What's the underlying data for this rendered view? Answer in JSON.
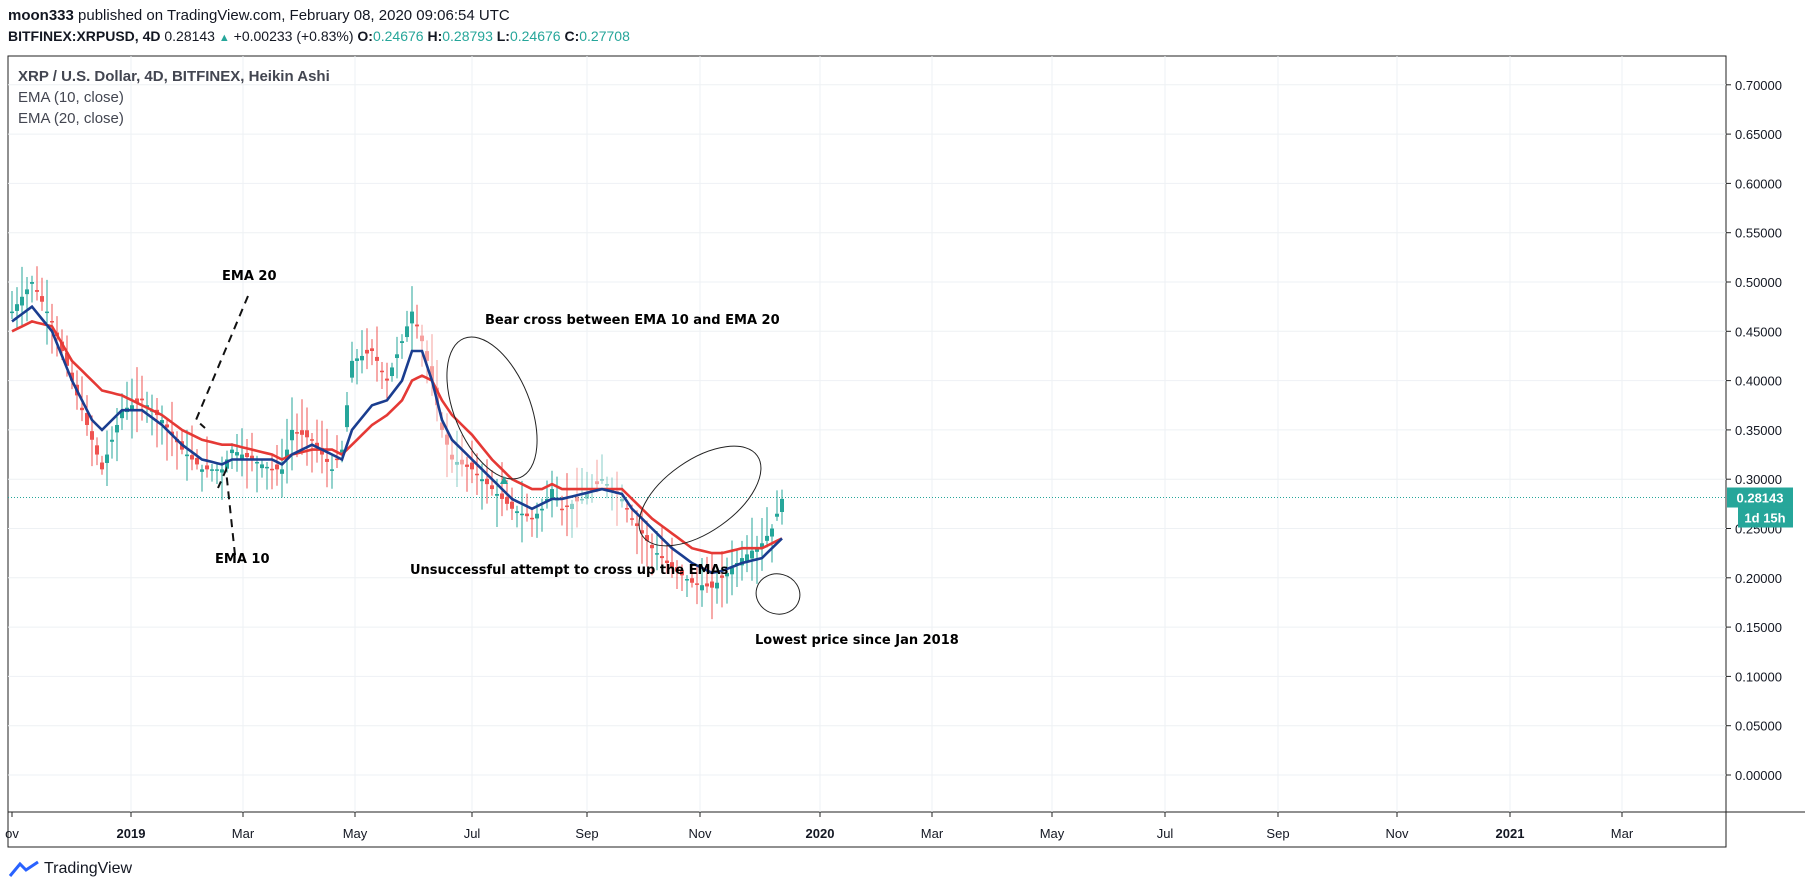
{
  "header": {
    "author": "moon333",
    "published_text": "published on TradingView.com, February 08, 2020 09:06:54 UTC",
    "symbol": "BITFINEX:XRPUSD, 4D",
    "last": "0.28143",
    "change": "+0.00233 (+0.83%)",
    "o_label": "O:",
    "o_val": "0.24676",
    "h_label": "H:",
    "h_val": "0.28793",
    "l_label": "L:",
    "l_val": "0.24676",
    "c_label": "C:",
    "c_val": "0.27708"
  },
  "legend": {
    "title": "XRP / U.S. Dollar, 4D, BITFINEX, Heikin Ashi",
    "ema10": "EMA (10, close)",
    "ema20": "EMA (20, close)"
  },
  "footer": {
    "brand": "TradingView"
  },
  "colors": {
    "up": "#26a69a",
    "down": "#ef5350",
    "ema10": "#1a3d8f",
    "ema20": "#e53935",
    "grid": "#eef1f4"
  },
  "chart_data": {
    "type": "candlestick",
    "title": "XRP / U.S. Dollar, 4D, BITFINEX, Heikin Ashi",
    "ylim": [
      -0.04,
      0.72
    ],
    "y_ticks": [
      "0.00000",
      "0.05000",
      "0.10000",
      "0.15000",
      "0.20000",
      "0.25000",
      "0.30000",
      "0.35000",
      "0.40000",
      "0.45000",
      "0.50000",
      "0.55000",
      "0.60000",
      "0.65000",
      "0.70000"
    ],
    "x_ticks": [
      "ov",
      "2019",
      "Mar",
      "May",
      "Jul",
      "Sep",
      "Nov",
      "2020",
      "Mar",
      "May",
      "Jul",
      "Sep",
      "Nov",
      "2021",
      "Mar"
    ],
    "last_price_label": "0.28143",
    "countdown_label": "1d 15h",
    "last_price": 0.28143,
    "anchors": [
      [
        0,
        0.47
      ],
      [
        4,
        0.5
      ],
      [
        8,
        0.46
      ],
      [
        12,
        0.4
      ],
      [
        16,
        0.34
      ],
      [
        18,
        0.31
      ],
      [
        22,
        0.37
      ],
      [
        26,
        0.38
      ],
      [
        30,
        0.36
      ],
      [
        34,
        0.33
      ],
      [
        38,
        0.31
      ],
      [
        42,
        0.31
      ],
      [
        44,
        0.33
      ],
      [
        48,
        0.32
      ],
      [
        52,
        0.31
      ],
      [
        54,
        0.31
      ],
      [
        56,
        0.35
      ],
      [
        60,
        0.34
      ],
      [
        64,
        0.31
      ],
      [
        66,
        0.33
      ],
      [
        68,
        0.42
      ],
      [
        72,
        0.43
      ],
      [
        75,
        0.4
      ],
      [
        78,
        0.44
      ],
      [
        80,
        0.47
      ],
      [
        82,
        0.44
      ],
      [
        84,
        0.4
      ],
      [
        86,
        0.35
      ],
      [
        88,
        0.32
      ],
      [
        92,
        0.31
      ],
      [
        96,
        0.29
      ],
      [
        100,
        0.27
      ],
      [
        104,
        0.26
      ],
      [
        106,
        0.27
      ],
      [
        108,
        0.29
      ],
      [
        110,
        0.27
      ],
      [
        114,
        0.28
      ],
      [
        118,
        0.3
      ],
      [
        122,
        0.28
      ],
      [
        124,
        0.26
      ],
      [
        128,
        0.23
      ],
      [
        132,
        0.21
      ],
      [
        136,
        0.195
      ],
      [
        140,
        0.19
      ],
      [
        142,
        0.2
      ],
      [
        146,
        0.22
      ],
      [
        150,
        0.235
      ],
      [
        152,
        0.25
      ],
      [
        154,
        0.28
      ]
    ],
    "ema10": [
      [
        0,
        0.46
      ],
      [
        4,
        0.475
      ],
      [
        8,
        0.45
      ],
      [
        12,
        0.4
      ],
      [
        16,
        0.36
      ],
      [
        18,
        0.35
      ],
      [
        22,
        0.37
      ],
      [
        26,
        0.37
      ],
      [
        30,
        0.355
      ],
      [
        34,
        0.335
      ],
      [
        38,
        0.32
      ],
      [
        42,
        0.315
      ],
      [
        44,
        0.32
      ],
      [
        48,
        0.32
      ],
      [
        52,
        0.32
      ],
      [
        54,
        0.315
      ],
      [
        56,
        0.325
      ],
      [
        60,
        0.335
      ],
      [
        64,
        0.325
      ],
      [
        66,
        0.32
      ],
      [
        68,
        0.35
      ],
      [
        72,
        0.375
      ],
      [
        75,
        0.38
      ],
      [
        78,
        0.4
      ],
      [
        80,
        0.43
      ],
      [
        82,
        0.43
      ],
      [
        84,
        0.4
      ],
      [
        86,
        0.36
      ],
      [
        88,
        0.34
      ],
      [
        92,
        0.32
      ],
      [
        96,
        0.3
      ],
      [
        100,
        0.28
      ],
      [
        104,
        0.27
      ],
      [
        106,
        0.275
      ],
      [
        108,
        0.28
      ],
      [
        110,
        0.28
      ],
      [
        114,
        0.285
      ],
      [
        118,
        0.29
      ],
      [
        122,
        0.285
      ],
      [
        124,
        0.27
      ],
      [
        128,
        0.25
      ],
      [
        132,
        0.23
      ],
      [
        136,
        0.215
      ],
      [
        140,
        0.205
      ],
      [
        142,
        0.207
      ],
      [
        146,
        0.215
      ],
      [
        150,
        0.22
      ],
      [
        152,
        0.23
      ],
      [
        154,
        0.24
      ]
    ],
    "ema20": [
      [
        0,
        0.45
      ],
      [
        4,
        0.46
      ],
      [
        8,
        0.455
      ],
      [
        12,
        0.42
      ],
      [
        16,
        0.4
      ],
      [
        18,
        0.39
      ],
      [
        22,
        0.385
      ],
      [
        26,
        0.375
      ],
      [
        30,
        0.365
      ],
      [
        34,
        0.35
      ],
      [
        38,
        0.34
      ],
      [
        42,
        0.335
      ],
      [
        44,
        0.335
      ],
      [
        48,
        0.33
      ],
      [
        52,
        0.325
      ],
      [
        54,
        0.32
      ],
      [
        56,
        0.325
      ],
      [
        60,
        0.33
      ],
      [
        64,
        0.33
      ],
      [
        66,
        0.325
      ],
      [
        68,
        0.335
      ],
      [
        72,
        0.355
      ],
      [
        75,
        0.365
      ],
      [
        78,
        0.38
      ],
      [
        80,
        0.4
      ],
      [
        82,
        0.405
      ],
      [
        84,
        0.4
      ],
      [
        86,
        0.38
      ],
      [
        88,
        0.365
      ],
      [
        92,
        0.345
      ],
      [
        96,
        0.32
      ],
      [
        100,
        0.3
      ],
      [
        104,
        0.29
      ],
      [
        106,
        0.29
      ],
      [
        108,
        0.295
      ],
      [
        110,
        0.29
      ],
      [
        114,
        0.29
      ],
      [
        118,
        0.29
      ],
      [
        122,
        0.29
      ],
      [
        124,
        0.28
      ],
      [
        128,
        0.26
      ],
      [
        132,
        0.245
      ],
      [
        136,
        0.23
      ],
      [
        140,
        0.225
      ],
      [
        142,
        0.225
      ],
      [
        146,
        0.23
      ],
      [
        150,
        0.23
      ],
      [
        152,
        0.235
      ],
      [
        154,
        0.24
      ]
    ],
    "annotations": {
      "ema20_label": "EMA 20",
      "ema10_label": "EMA 10",
      "bear_cross": "Bear cross between EMA 10 and EMA 20",
      "unsuccessful": "Unsuccessful attempt to cross up the EMAs",
      "lowest": "Lowest price since Jan 2018"
    }
  }
}
